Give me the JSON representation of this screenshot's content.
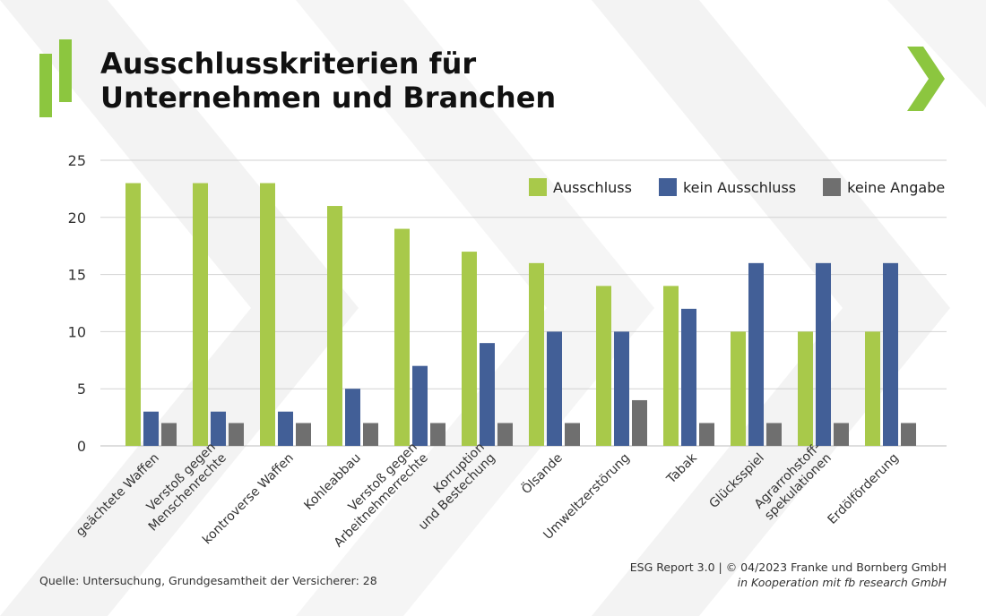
{
  "title_line1": "Ausschlusskriterien für",
  "title_line2": "Unternehmen und Branchen",
  "colors": {
    "ausschluss": "#a8c94a",
    "kein_ausschluss": "#425f97",
    "keine_angabe": "#6f6f6f",
    "logo_green": "#8cc63f",
    "chevron": "#8cc63f"
  },
  "chart_data": {
    "type": "bar",
    "categories": [
      [
        "geächtete Waffen"
      ],
      [
        "Verstoß gegen",
        "Menschenrechte"
      ],
      [
        "kontroverse Waffen"
      ],
      [
        "Kohleabbau"
      ],
      [
        "Verstoß gegen",
        "Arbeitnehmerrechte"
      ],
      [
        "Korruption",
        "und Bestechung"
      ],
      [
        "Ölsande"
      ],
      [
        "Umweltzerstörung"
      ],
      [
        "Tabak"
      ],
      [
        "Glücksspiel"
      ],
      [
        "Agrarrohstoff-",
        "spekulationen"
      ],
      [
        "Erdölförderung"
      ]
    ],
    "series": [
      {
        "name": "Ausschluss",
        "values": [
          23,
          23,
          23,
          21,
          19,
          17,
          16,
          14,
          14,
          10,
          10,
          10
        ]
      },
      {
        "name": "kein Ausschluss",
        "values": [
          3,
          3,
          3,
          5,
          7,
          9,
          10,
          10,
          12,
          16,
          16,
          16
        ]
      },
      {
        "name": "keine Angabe",
        "values": [
          2,
          2,
          2,
          2,
          2,
          2,
          2,
          4,
          2,
          2,
          2,
          2
        ]
      }
    ],
    "yticks": [
      "0",
      "5",
      "10",
      "15",
      "20",
      "25"
    ],
    "ylim": [
      0,
      25
    ],
    "legend_position": "top-right",
    "grid": true
  },
  "legend": {
    "ausschluss": "Ausschluss",
    "kein_ausschluss": "kein Ausschluss",
    "keine_angabe": "keine Angabe"
  },
  "footer": {
    "source": "Quelle: Untersuchung, Grundgesamtheit der Versicherer: 28",
    "report": "ESG Report 3.0 | © 04/2023 Franke und Bornberg GmbH",
    "cooperation": "in Kooperation mit fb research GmbH"
  }
}
